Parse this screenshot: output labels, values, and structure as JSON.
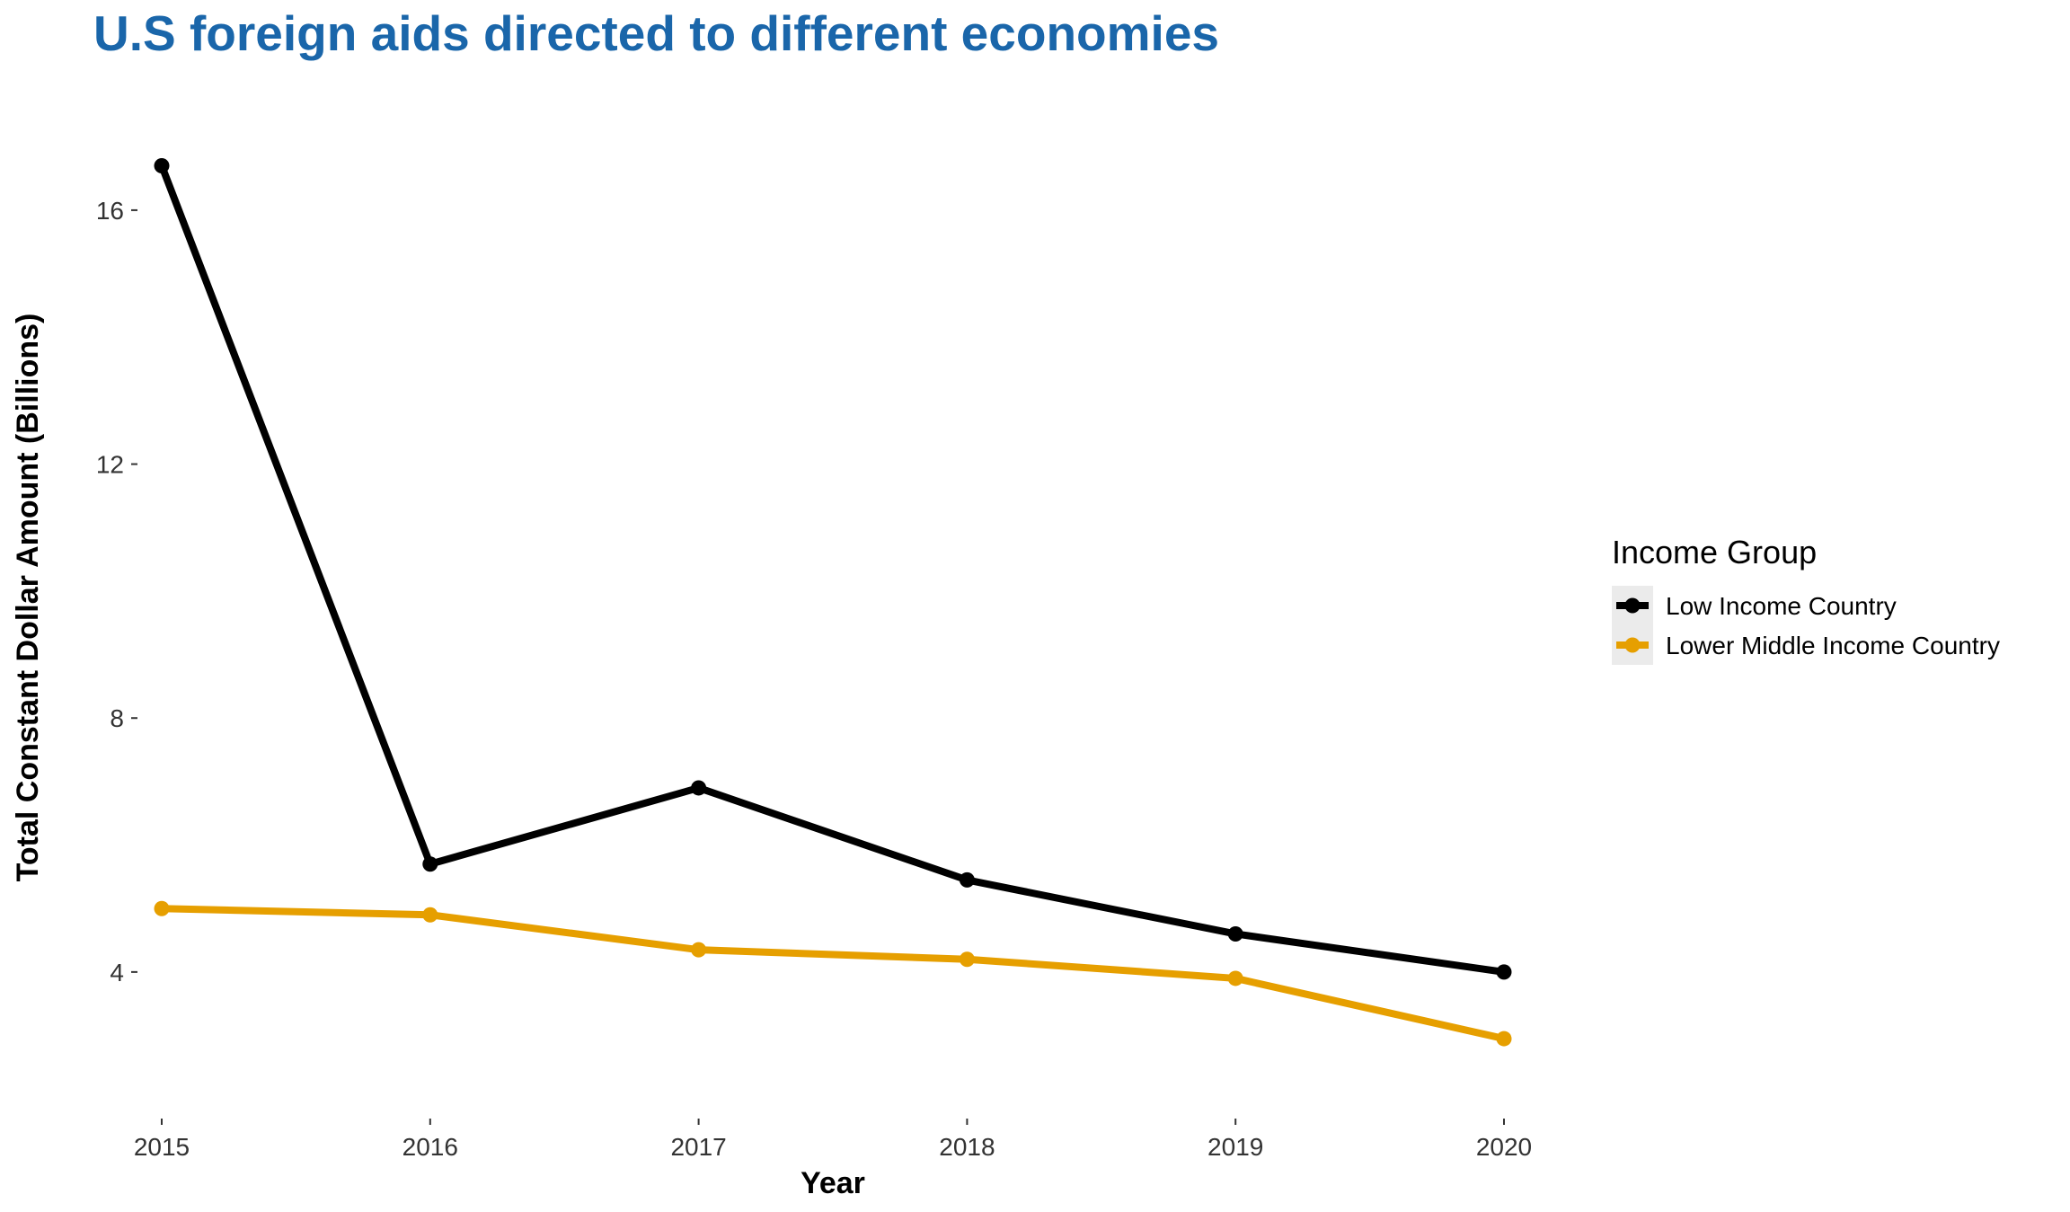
{
  "chart_data": {
    "type": "line",
    "title": "U.S foreign aids directed to different economies",
    "xlabel": "Year",
    "ylabel": "Total Constant Dollar Amount (Billions)",
    "x": [
      2015,
      2016,
      2017,
      2018,
      2019,
      2020
    ],
    "x_tick_labels": [
      "2015",
      "2016",
      "2017",
      "2018",
      "2019",
      "2020"
    ],
    "y_ticks": [
      4,
      8,
      12,
      16
    ],
    "y_tick_labels": [
      "4",
      "8",
      "12",
      "16"
    ],
    "ylim": [
      2.3,
      17.4
    ],
    "grid": false,
    "legend": {
      "title": "Income Group",
      "position": "right"
    },
    "series": [
      {
        "name": "Low Income Country",
        "color": "#000000",
        "values": [
          16.7,
          5.7,
          6.9,
          5.45,
          4.6,
          4.0
        ]
      },
      {
        "name": "Lower Middle Income Country",
        "color": "#E69F00",
        "values": [
          5.0,
          4.9,
          4.35,
          4.2,
          3.9,
          2.95
        ]
      }
    ],
    "colors": {
      "title": "#1A66AA",
      "legend_key_background": "#EBEBEB"
    }
  }
}
